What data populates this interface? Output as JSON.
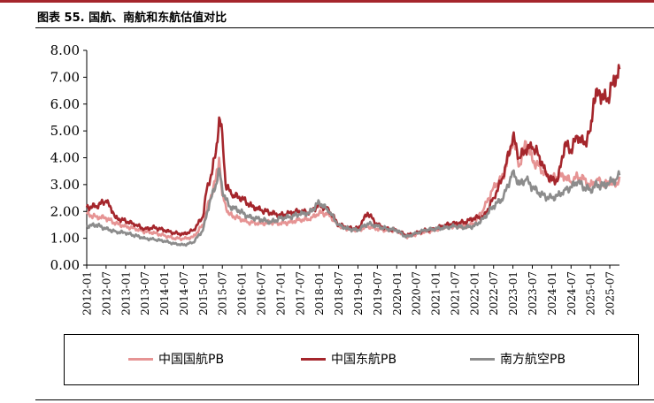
{
  "figure": {
    "title": "图表 55. 国航、南航和东航估值对比"
  },
  "chart_data": {
    "type": "line",
    "ylim": [
      0,
      8
    ],
    "y_ticks": [
      "0.00",
      "1.00",
      "2.00",
      "3.00",
      "4.00",
      "5.00",
      "6.00",
      "7.00",
      "8.00"
    ],
    "x_tick_labels": [
      "2012-01",
      "2012-07",
      "2013-01",
      "2013-07",
      "2014-01",
      "2014-07",
      "2015-01",
      "2015-07",
      "2016-01",
      "2016-07",
      "2017-01",
      "2017-07",
      "2018-01",
      "2018-07",
      "2019-01",
      "2019-07",
      "2020-01",
      "2020-07",
      "2021-01",
      "2021-07",
      "2022-01",
      "2022-07",
      "2023-01",
      "2023-07",
      "2024-01",
      "2024-07",
      "2025-01",
      "2025-07"
    ],
    "grid": false,
    "legend_position": "bottom",
    "series": [
      {
        "name": "中国国航PB",
        "color": "#e69494",
        "points": [
          [
            "2012-01",
            1.9
          ],
          [
            "2012-04",
            1.8
          ],
          [
            "2012-07",
            1.75
          ],
          [
            "2012-10",
            1.55
          ],
          [
            "2013-01",
            1.45
          ],
          [
            "2013-04",
            1.35
          ],
          [
            "2013-07",
            1.25
          ],
          [
            "2013-10",
            1.2
          ],
          [
            "2014-01",
            1.1
          ],
          [
            "2014-04",
            1.0
          ],
          [
            "2014-07",
            0.98
          ],
          [
            "2014-10",
            1.05
          ],
          [
            "2015-01",
            1.5
          ],
          [
            "2015-03",
            2.4
          ],
          [
            "2015-05",
            3.2
          ],
          [
            "2015-06",
            4.0
          ],
          [
            "2015-07",
            2.6
          ],
          [
            "2015-09",
            1.9
          ],
          [
            "2015-12",
            1.75
          ],
          [
            "2016-03",
            1.6
          ],
          [
            "2016-07",
            1.55
          ],
          [
            "2016-10",
            1.6
          ],
          [
            "2017-01",
            1.55
          ],
          [
            "2017-04",
            1.6
          ],
          [
            "2017-07",
            1.7
          ],
          [
            "2017-10",
            1.7
          ],
          [
            "2018-01",
            1.95
          ],
          [
            "2018-04",
            1.9
          ],
          [
            "2018-07",
            1.45
          ],
          [
            "2018-10",
            1.35
          ],
          [
            "2019-01",
            1.3
          ],
          [
            "2019-04",
            1.45
          ],
          [
            "2019-07",
            1.35
          ],
          [
            "2019-10",
            1.3
          ],
          [
            "2020-01",
            1.3
          ],
          [
            "2020-04",
            1.05
          ],
          [
            "2020-07",
            1.15
          ],
          [
            "2020-10",
            1.25
          ],
          [
            "2021-01",
            1.3
          ],
          [
            "2021-04",
            1.45
          ],
          [
            "2021-07",
            1.45
          ],
          [
            "2021-10",
            1.45
          ],
          [
            "2022-01",
            1.55
          ],
          [
            "2022-04",
            2.1
          ],
          [
            "2022-07",
            2.9
          ],
          [
            "2022-10",
            3.3
          ],
          [
            "2023-01",
            4.7
          ],
          [
            "2023-03",
            3.7
          ],
          [
            "2023-05",
            4.6
          ],
          [
            "2023-07",
            3.9
          ],
          [
            "2023-09",
            3.7
          ],
          [
            "2023-11",
            3.4
          ],
          [
            "2024-01",
            3.2
          ],
          [
            "2024-03",
            3.3
          ],
          [
            "2024-05",
            3.3
          ],
          [
            "2024-07",
            3.1
          ],
          [
            "2024-09",
            3.3
          ],
          [
            "2024-11",
            3.2
          ],
          [
            "2025-01",
            2.95
          ],
          [
            "2025-03",
            3.2
          ],
          [
            "2025-05",
            3.0
          ],
          [
            "2025-07",
            3.05
          ],
          [
            "2025-09",
            3.0
          ],
          [
            "2025-10",
            3.3
          ]
        ]
      },
      {
        "name": "中国东航PB",
        "color": "#a5262c",
        "points": [
          [
            "2012-01",
            2.15
          ],
          [
            "2012-04",
            2.2
          ],
          [
            "2012-07",
            2.4
          ],
          [
            "2012-09",
            2.0
          ],
          [
            "2012-10",
            1.75
          ],
          [
            "2013-01",
            1.65
          ],
          [
            "2013-04",
            1.5
          ],
          [
            "2013-07",
            1.35
          ],
          [
            "2013-10",
            1.4
          ],
          [
            "2014-01",
            1.3
          ],
          [
            "2014-04",
            1.2
          ],
          [
            "2014-07",
            1.15
          ],
          [
            "2014-10",
            1.3
          ],
          [
            "2015-01",
            1.8
          ],
          [
            "2015-02",
            2.7
          ],
          [
            "2015-04",
            3.6
          ],
          [
            "2015-05",
            4.2
          ],
          [
            "2015-06",
            5.5
          ],
          [
            "2015-07",
            4.9
          ],
          [
            "2015-08",
            3.0
          ],
          [
            "2015-10",
            2.6
          ],
          [
            "2016-01",
            2.5
          ],
          [
            "2016-04",
            2.2
          ],
          [
            "2016-07",
            2.05
          ],
          [
            "2016-10",
            1.95
          ],
          [
            "2017-01",
            1.85
          ],
          [
            "2017-04",
            1.95
          ],
          [
            "2017-07",
            2.0
          ],
          [
            "2017-10",
            1.95
          ],
          [
            "2018-01",
            2.25
          ],
          [
            "2018-04",
            2.05
          ],
          [
            "2018-07",
            1.5
          ],
          [
            "2018-10",
            1.4
          ],
          [
            "2019-01",
            1.35
          ],
          [
            "2019-04",
            1.95
          ],
          [
            "2019-07",
            1.5
          ],
          [
            "2019-10",
            1.35
          ],
          [
            "2020-01",
            1.3
          ],
          [
            "2020-04",
            1.1
          ],
          [
            "2020-07",
            1.2
          ],
          [
            "2020-10",
            1.3
          ],
          [
            "2021-01",
            1.35
          ],
          [
            "2021-04",
            1.5
          ],
          [
            "2021-07",
            1.55
          ],
          [
            "2021-10",
            1.6
          ],
          [
            "2022-01",
            1.75
          ],
          [
            "2022-04",
            1.8
          ],
          [
            "2022-07",
            2.5
          ],
          [
            "2022-10",
            3.3
          ],
          [
            "2023-01",
            4.8
          ],
          [
            "2023-03",
            4.0
          ],
          [
            "2023-05",
            4.3
          ],
          [
            "2023-07",
            4.4
          ],
          [
            "2023-09",
            4.1
          ],
          [
            "2023-11",
            3.5
          ],
          [
            "2024-01",
            3.15
          ],
          [
            "2024-03",
            3.2
          ],
          [
            "2024-05",
            4.5
          ],
          [
            "2024-07",
            4.3
          ],
          [
            "2024-09",
            4.8
          ],
          [
            "2024-11",
            4.5
          ],
          [
            "2025-01",
            5.0
          ],
          [
            "2025-02",
            6.2
          ],
          [
            "2025-04",
            6.4
          ],
          [
            "2025-06",
            6.1
          ],
          [
            "2025-08",
            6.8
          ],
          [
            "2025-10",
            7.3
          ]
        ]
      },
      {
        "name": "南方航空PB",
        "color": "#8c8c8c",
        "points": [
          [
            "2012-01",
            1.45
          ],
          [
            "2012-04",
            1.5
          ],
          [
            "2012-07",
            1.35
          ],
          [
            "2012-10",
            1.25
          ],
          [
            "2013-01",
            1.2
          ],
          [
            "2013-04",
            1.1
          ],
          [
            "2013-07",
            1.0
          ],
          [
            "2013-10",
            0.95
          ],
          [
            "2014-01",
            0.9
          ],
          [
            "2014-04",
            0.8
          ],
          [
            "2014-07",
            0.75
          ],
          [
            "2014-10",
            0.85
          ],
          [
            "2015-01",
            1.3
          ],
          [
            "2015-03",
            2.3
          ],
          [
            "2015-05",
            3.0
          ],
          [
            "2015-06",
            3.6
          ],
          [
            "2015-07",
            2.8
          ],
          [
            "2015-09",
            2.2
          ],
          [
            "2015-12",
            2.05
          ],
          [
            "2016-03",
            1.8
          ],
          [
            "2016-07",
            1.7
          ],
          [
            "2016-10",
            1.6
          ],
          [
            "2017-01",
            1.75
          ],
          [
            "2017-04",
            1.8
          ],
          [
            "2017-07",
            1.9
          ],
          [
            "2017-10",
            1.95
          ],
          [
            "2018-01",
            2.35
          ],
          [
            "2018-04",
            2.0
          ],
          [
            "2018-07",
            1.5
          ],
          [
            "2018-10",
            1.35
          ],
          [
            "2019-01",
            1.3
          ],
          [
            "2019-04",
            1.55
          ],
          [
            "2019-07",
            1.45
          ],
          [
            "2019-10",
            1.35
          ],
          [
            "2020-01",
            1.3
          ],
          [
            "2020-04",
            1.05
          ],
          [
            "2020-07",
            1.2
          ],
          [
            "2020-10",
            1.3
          ],
          [
            "2021-01",
            1.35
          ],
          [
            "2021-04",
            1.4
          ],
          [
            "2021-07",
            1.45
          ],
          [
            "2021-10",
            1.4
          ],
          [
            "2022-01",
            1.45
          ],
          [
            "2022-04",
            1.75
          ],
          [
            "2022-07",
            2.2
          ],
          [
            "2022-10",
            2.5
          ],
          [
            "2023-01",
            3.5
          ],
          [
            "2023-03",
            3.0
          ],
          [
            "2023-05",
            3.2
          ],
          [
            "2023-07",
            2.9
          ],
          [
            "2023-09",
            2.7
          ],
          [
            "2023-11",
            2.55
          ],
          [
            "2024-01",
            2.5
          ],
          [
            "2024-03",
            2.6
          ],
          [
            "2024-05",
            2.8
          ],
          [
            "2024-07",
            2.9
          ],
          [
            "2024-09",
            3.1
          ],
          [
            "2024-11",
            2.9
          ],
          [
            "2025-01",
            2.8
          ],
          [
            "2025-03",
            3.0
          ],
          [
            "2025-05",
            2.95
          ],
          [
            "2025-07",
            3.1
          ],
          [
            "2025-09",
            3.2
          ],
          [
            "2025-10",
            3.35
          ]
        ]
      }
    ]
  }
}
